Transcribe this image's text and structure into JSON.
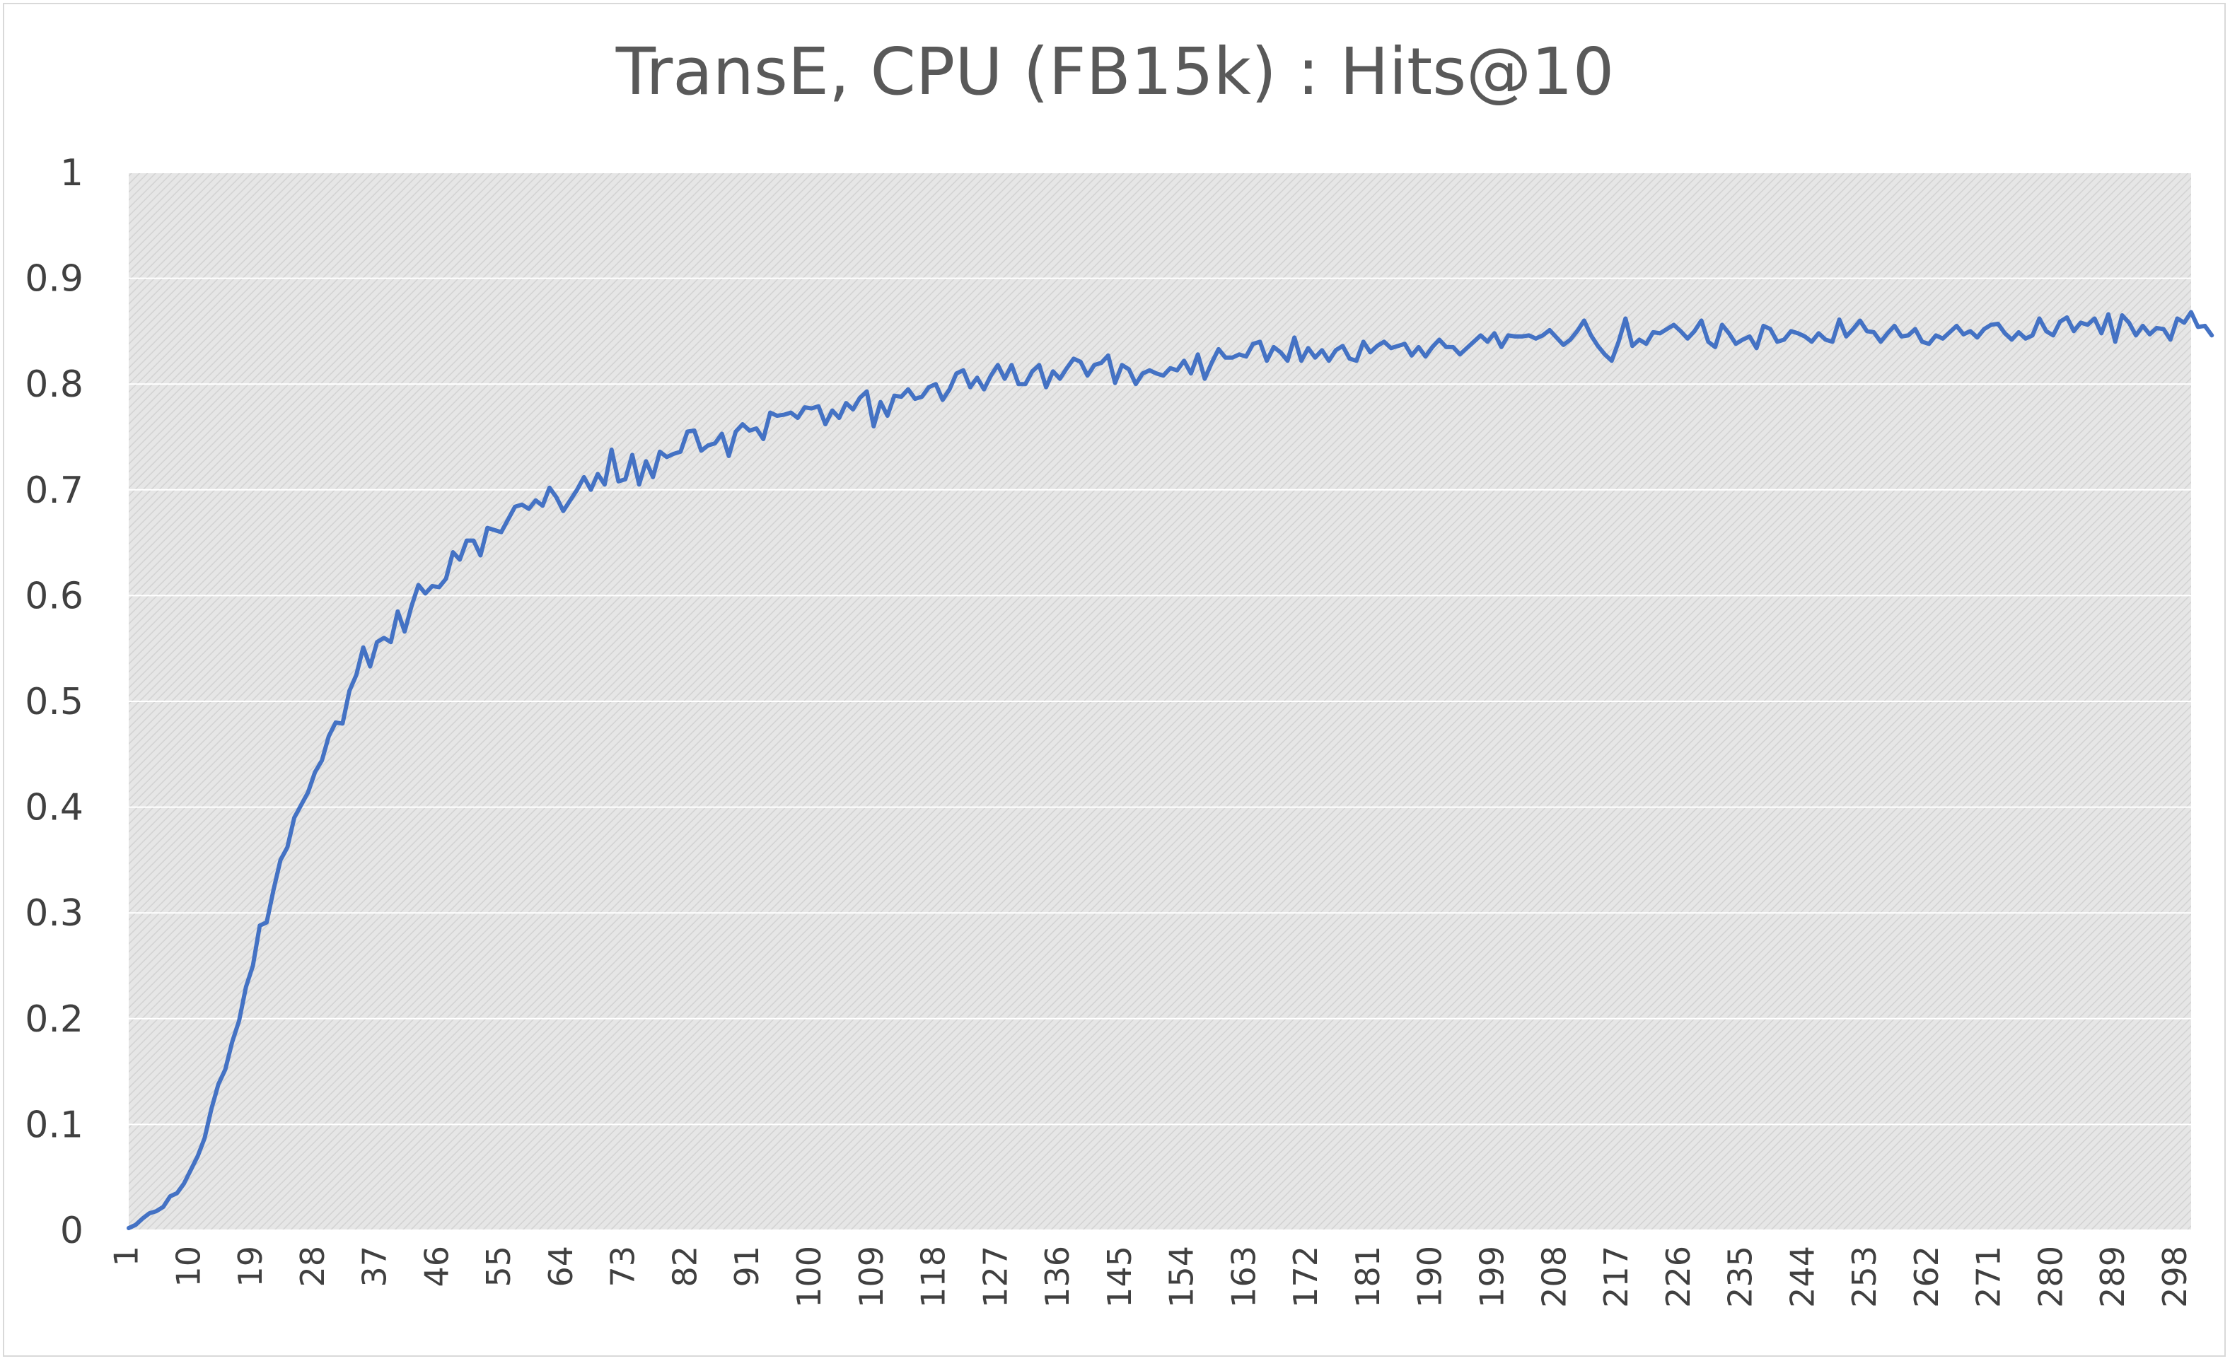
{
  "chart_data": {
    "type": "line",
    "title": "TransE, CPU (FB15k) : Hits@10",
    "xlabel": "",
    "ylabel": "",
    "ylim": [
      0,
      1
    ],
    "yticks": [
      "0",
      "0.1",
      "0.2",
      "0.3",
      "0.4",
      "0.5",
      "0.6",
      "0.7",
      "0.8",
      "0.9",
      "1"
    ],
    "x_range": [
      1,
      300
    ],
    "xtick_labels": [
      "1",
      "10",
      "19",
      "28",
      "37",
      "46",
      "55",
      "64",
      "73",
      "82",
      "91",
      "100",
      "109",
      "118",
      "127",
      "136",
      "145",
      "154",
      "163",
      "172",
      "181",
      "190",
      "199",
      "208",
      "217",
      "226",
      "235",
      "244",
      "253",
      "262",
      "271",
      "280",
      "289",
      "298"
    ],
    "grid": "pattern-fill-background",
    "legend": "none",
    "colors": {
      "line": "#4472c4",
      "plot_bg": "#e6e6e6",
      "plot_hatch": "#d2d2d2",
      "gridline": "#ffffff",
      "axis_text": "#404040",
      "title_text": "#595959"
    },
    "series": [
      {
        "x_start": 1,
        "values": [
          0.002,
          0.005,
          0.011,
          0.016,
          0.018,
          0.022,
          0.032,
          0.035,
          0.044,
          0.057,
          0.07,
          0.087,
          0.115,
          0.138,
          0.152,
          0.178,
          0.198,
          0.23,
          0.25,
          0.288,
          0.291,
          0.322,
          0.35,
          0.362,
          0.39,
          0.402,
          0.414,
          0.433,
          0.444,
          0.467,
          0.48,
          0.479,
          0.51,
          0.525,
          0.551,
          0.533,
          0.556,
          0.56,
          0.556,
          0.585,
          0.566,
          0.59,
          0.61,
          0.602,
          0.609,
          0.608,
          0.616,
          0.641,
          0.634,
          0.652,
          0.652,
          0.638,
          0.664,
          0.662,
          0.66,
          0.672,
          0.684,
          0.686,
          0.682,
          0.69,
          0.685,
          0.702,
          0.693,
          0.68,
          0.69,
          0.7,
          0.712,
          0.7,
          0.715,
          0.705,
          0.738,
          0.708,
          0.71,
          0.733,
          0.705,
          0.727,
          0.712,
          0.736,
          0.731,
          0.734,
          0.736,
          0.755,
          0.756,
          0.737,
          0.742,
          0.744,
          0.753,
          0.732,
          0.755,
          0.762,
          0.756,
          0.758,
          0.748,
          0.773,
          0.77,
          0.771,
          0.773,
          0.768,
          0.778,
          0.777,
          0.779,
          0.762,
          0.775,
          0.768,
          0.782,
          0.776,
          0.787,
          0.793,
          0.76,
          0.783,
          0.77,
          0.789,
          0.788,
          0.795,
          0.786,
          0.788,
          0.797,
          0.8,
          0.785,
          0.795,
          0.81,
          0.813,
          0.797,
          0.806,
          0.795,
          0.808,
          0.818,
          0.805,
          0.818,
          0.8,
          0.8,
          0.812,
          0.818,
          0.797,
          0.812,
          0.805,
          0.815,
          0.824,
          0.821,
          0.808,
          0.818,
          0.82,
          0.827,
          0.801,
          0.818,
          0.814,
          0.8,
          0.81,
          0.813,
          0.81,
          0.808,
          0.815,
          0.813,
          0.822,
          0.81,
          0.828,
          0.805,
          0.82,
          0.833,
          0.825,
          0.825,
          0.828,
          0.826,
          0.838,
          0.84,
          0.822,
          0.835,
          0.83,
          0.822,
          0.844,
          0.822,
          0.834,
          0.825,
          0.832,
          0.822,
          0.832,
          0.836,
          0.824,
          0.822,
          0.84,
          0.83,
          0.836,
          0.84,
          0.834,
          0.836,
          0.838,
          0.827,
          0.835,
          0.826,
          0.835,
          0.842,
          0.835,
          0.835,
          0.828,
          0.834,
          0.84,
          0.846,
          0.84,
          0.848,
          0.835,
          0.846,
          0.845,
          0.845,
          0.846,
          0.843,
          0.846,
          0.851,
          0.844,
          0.837,
          0.842,
          0.85,
          0.86,
          0.846,
          0.836,
          0.828,
          0.822,
          0.84,
          0.862,
          0.836,
          0.842,
          0.838,
          0.849,
          0.848,
          0.852,
          0.856,
          0.85,
          0.843,
          0.85,
          0.86,
          0.84,
          0.835,
          0.856,
          0.848,
          0.838,
          0.842,
          0.845,
          0.834,
          0.855,
          0.852,
          0.84,
          0.842,
          0.85,
          0.848,
          0.845,
          0.84,
          0.848,
          0.842,
          0.84,
          0.861,
          0.845,
          0.852,
          0.86,
          0.85,
          0.849,
          0.84,
          0.848,
          0.855,
          0.845,
          0.846,
          0.852,
          0.84,
          0.838,
          0.846,
          0.843,
          0.849,
          0.855,
          0.847,
          0.85,
          0.844,
          0.852,
          0.856,
          0.857,
          0.848,
          0.842,
          0.849,
          0.843,
          0.846,
          0.862,
          0.85,
          0.846,
          0.859,
          0.863,
          0.85,
          0.858,
          0.856,
          0.862,
          0.848,
          0.866,
          0.84,
          0.865,
          0.858,
          0.846,
          0.855,
          0.847,
          0.853,
          0.852,
          0.842,
          0.862,
          0.858,
          0.868,
          0.854,
          0.855,
          0.846
        ]
      }
    ]
  }
}
